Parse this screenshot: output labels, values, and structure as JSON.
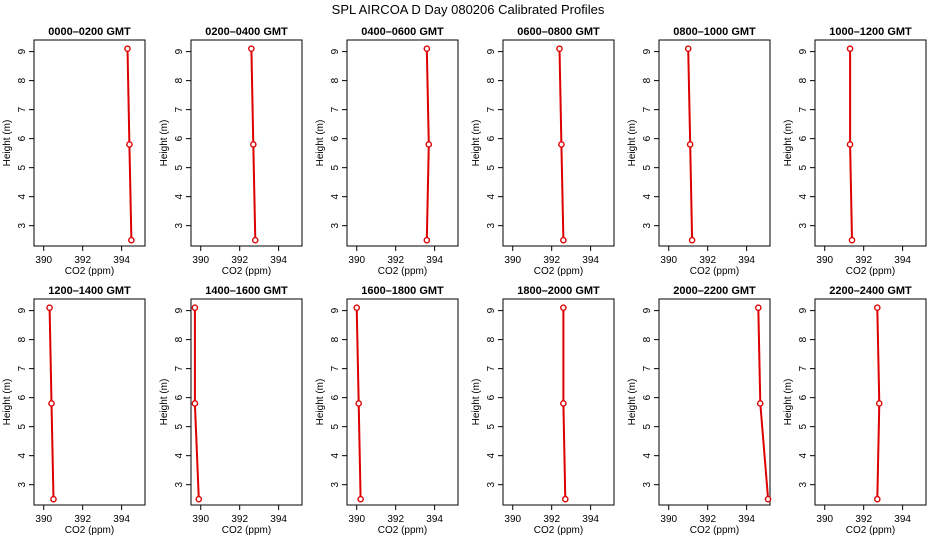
{
  "title": "SPL AIRCOA D  Day 080206  Calibrated Profiles",
  "chart_data": {
    "type": "line",
    "title": "SPL AIRCOA D  Day 080206  Calibrated Profiles",
    "xlabel": "CO2 (ppm)",
    "ylabel": "Height (m)",
    "xlim": [
      389.5,
      395.2
    ],
    "ylim": [
      2.3,
      9.4
    ],
    "xticks": [
      390,
      392,
      394
    ],
    "yticks": [
      3,
      4,
      5,
      6,
      7,
      8,
      9
    ],
    "line_color": "#dd0000",
    "marker_color": "#dd0000",
    "heights": [
      9.1,
      5.8,
      2.5
    ],
    "panels": [
      {
        "title": "0000–0200 GMT",
        "co2": [
          394.3,
          394.4,
          394.5
        ]
      },
      {
        "title": "0200–0400 GMT",
        "co2": [
          392.6,
          392.7,
          392.8
        ]
      },
      {
        "title": "0400–0600 GMT",
        "co2": [
          393.6,
          393.7,
          393.6
        ]
      },
      {
        "title": "0600–0800 GMT",
        "co2": [
          392.4,
          392.5,
          392.6
        ]
      },
      {
        "title": "0800–1000 GMT",
        "co2": [
          391.0,
          391.1,
          391.2
        ]
      },
      {
        "title": "1000–1200 GMT",
        "co2": [
          391.3,
          391.3,
          391.4
        ]
      },
      {
        "title": "1200–1400 GMT",
        "co2": [
          390.3,
          390.4,
          390.5
        ]
      },
      {
        "title": "1400–1600 GMT",
        "co2": [
          389.7,
          389.7,
          389.9
        ]
      },
      {
        "title": "1600–1800 GMT",
        "co2": [
          390.0,
          390.1,
          390.2
        ]
      },
      {
        "title": "1800–2000 GMT",
        "co2": [
          392.6,
          392.6,
          392.7
        ]
      },
      {
        "title": "2000–2200 GMT",
        "co2": [
          394.6,
          394.7,
          395.1
        ]
      },
      {
        "title": "2200–2400 GMT",
        "co2": [
          392.7,
          392.8,
          392.7
        ]
      }
    ]
  }
}
